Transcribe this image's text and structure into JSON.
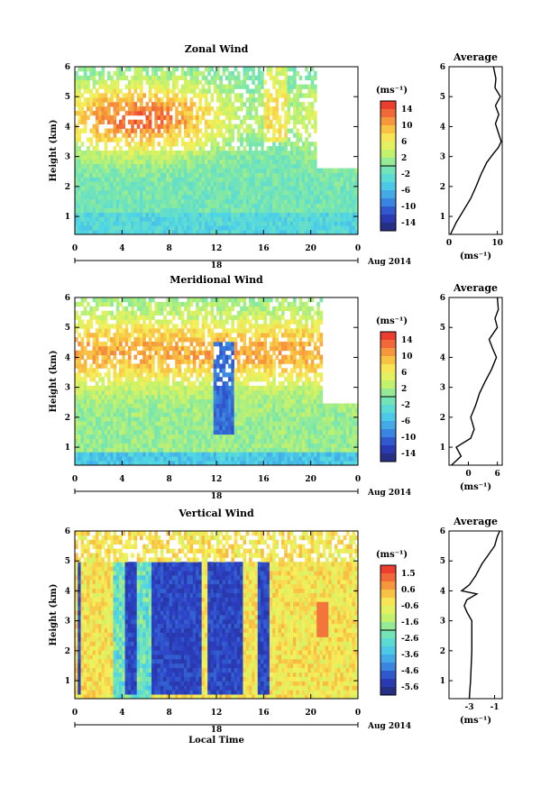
{
  "chart_data": [
    {
      "type": "heatmap",
      "title": "Zonal Wind",
      "ylabel": "Height (km)",
      "x_ticks": [
        "0",
        "4",
        "8",
        "12",
        "16",
        "20",
        "0"
      ],
      "y_ticks": [
        "1",
        "2",
        "3",
        "4",
        "5",
        "6"
      ],
      "ylim": [
        0.4,
        6
      ],
      "xlim": [
        0,
        24
      ],
      "date_label": "18",
      "date_suffix": "Aug 2014",
      "colorbar_unit": "(ms⁻¹)",
      "colorbar_ticks": [
        "14",
        "10",
        "6",
        "2",
        "-2",
        "-6",
        "-10",
        "-14"
      ],
      "colorbar_range": [
        -16,
        16
      ],
      "average": {
        "title": "Average",
        "xlabel": "(ms⁻¹)",
        "x_ticks": [
          "0",
          "10"
        ],
        "xlim": [
          0,
          11
        ],
        "heights": [
          0.4,
          0.8,
          1.2,
          1.6,
          2.0,
          2.4,
          2.8,
          3.1,
          3.3,
          3.5,
          3.8,
          4.1,
          4.4,
          4.7,
          5.0,
          5.3,
          5.6,
          6.0
        ],
        "values": [
          0.3,
          1.5,
          3.0,
          4.5,
          5.6,
          6.6,
          7.8,
          9.2,
          10.2,
          10.8,
          10.2,
          9.6,
          10.3,
          9.6,
          10.6,
          9.5,
          9.7,
          9.2
        ]
      }
    },
    {
      "type": "heatmap",
      "title": "Meridional Wind",
      "ylabel": "Height (km)",
      "x_ticks": [
        "0",
        "4",
        "8",
        "12",
        "16",
        "20",
        "0"
      ],
      "y_ticks": [
        "1",
        "2",
        "3",
        "4",
        "5",
        "6"
      ],
      "ylim": [
        0.4,
        6
      ],
      "xlim": [
        0,
        24
      ],
      "date_label": "18",
      "date_suffix": "Aug 2014",
      "colorbar_unit": "(ms⁻¹)",
      "colorbar_ticks": [
        "14",
        "10",
        "6",
        "2",
        "-2",
        "-6",
        "-10",
        "-14"
      ],
      "colorbar_range": [
        -16,
        16
      ],
      "average": {
        "title": "Average",
        "xlabel": "(ms⁻¹)",
        "x_ticks": [
          "0",
          "6"
        ],
        "xlim": [
          -4,
          7
        ],
        "heights": [
          0.4,
          0.7,
          1.0,
          1.3,
          1.6,
          2.0,
          2.4,
          2.8,
          3.2,
          3.6,
          4.0,
          4.3,
          4.6,
          5.0,
          5.3,
          5.6,
          6.0
        ],
        "values": [
          -3.5,
          -1.5,
          -2.5,
          0.5,
          1.2,
          0.5,
          1.5,
          2.3,
          3.5,
          4.8,
          5.8,
          5.0,
          4.3,
          6.0,
          5.5,
          6.2,
          6.0
        ]
      }
    },
    {
      "type": "heatmap",
      "title": "Vertical Wind",
      "ylabel": "Height (km)",
      "xlabel": "Local Time",
      "x_ticks": [
        "0",
        "4",
        "8",
        "12",
        "16",
        "20",
        "0"
      ],
      "y_ticks": [
        "1",
        "2",
        "3",
        "4",
        "5",
        "6"
      ],
      "ylim": [
        0.4,
        6
      ],
      "xlim": [
        0,
        24
      ],
      "date_label": "18",
      "date_suffix": "Aug 2014",
      "colorbar_unit": "(ms⁻¹)",
      "colorbar_ticks": [
        "1.5",
        "0.6",
        "-0.6",
        "-1.6",
        "-2.6",
        "-3.6",
        "-4.6",
        "-5.6"
      ],
      "colorbar_range": [
        -6.2,
        1.9
      ],
      "average": {
        "title": "Average",
        "xlabel": "(ms⁻¹)",
        "x_ticks": [
          "-3",
          "-1"
        ],
        "xlim": [
          -4.6,
          -0.4
        ],
        "heights": [
          0.4,
          1.0,
          2.0,
          3.0,
          3.3,
          3.5,
          3.7,
          3.9,
          4.0,
          4.2,
          4.5,
          4.9,
          5.2,
          5.5,
          5.8,
          6.0
        ],
        "values": [
          -3.0,
          -2.9,
          -2.8,
          -2.8,
          -3.2,
          -3.4,
          -3.2,
          -2.4,
          -3.6,
          -3.0,
          -2.5,
          -2.0,
          -1.5,
          -1.0,
          -0.8,
          -0.6
        ]
      }
    }
  ]
}
